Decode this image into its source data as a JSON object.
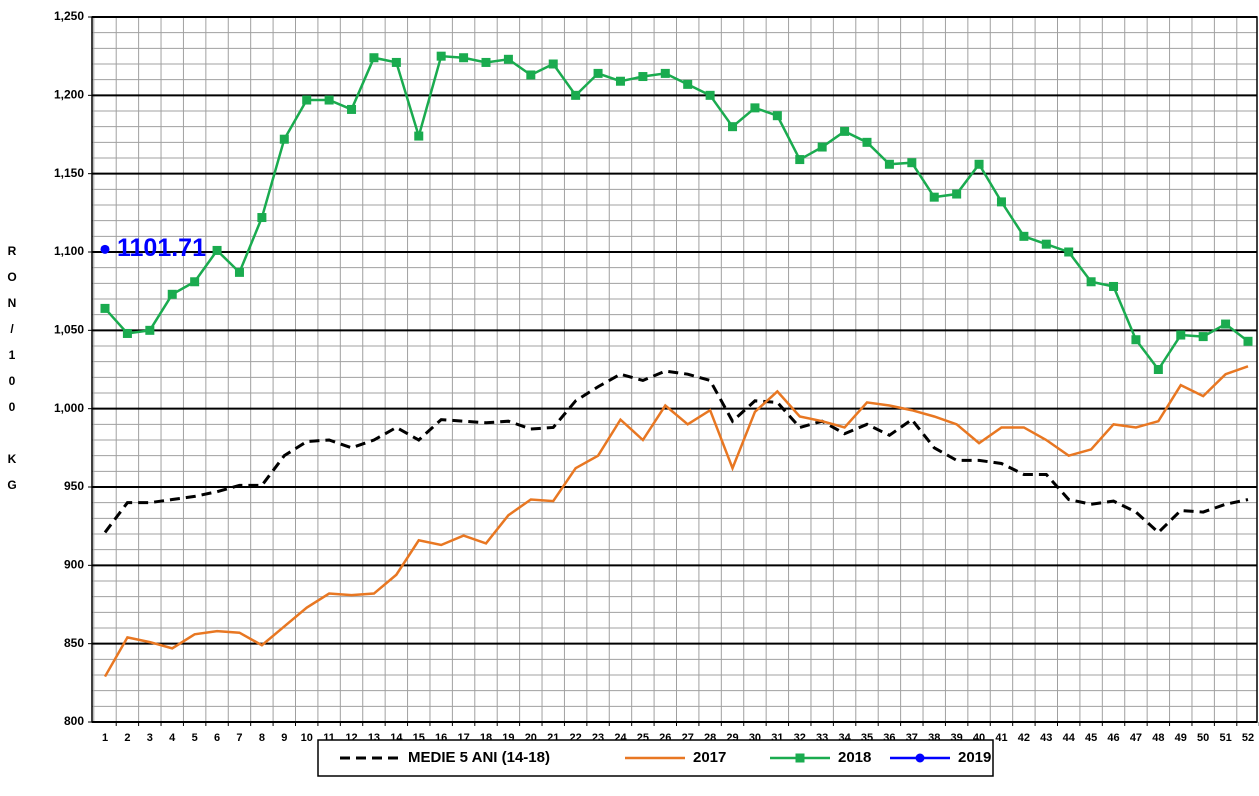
{
  "chart_data": {
    "type": "line",
    "y_label": "RON/100 KG",
    "categories": [
      "1",
      "2",
      "3",
      "4",
      "5",
      "6",
      "7",
      "8",
      "9",
      "10",
      "11",
      "12",
      "13",
      "14",
      "15",
      "16",
      "17",
      "18",
      "19",
      "20",
      "21",
      "22",
      "23",
      "24",
      "25",
      "26",
      "27",
      "28",
      "29",
      "30",
      "31",
      "32",
      "33",
      "34",
      "35",
      "36",
      "37",
      "38",
      "39",
      "40",
      "41",
      "42",
      "43",
      "44",
      "45",
      "46",
      "47",
      "48",
      "49",
      "50",
      "51",
      "52"
    ],
    "ylim": [
      800,
      1250
    ],
    "yticks": [
      800,
      850,
      900,
      950,
      {
        "value": 1000,
        "label": "1,000"
      },
      {
        "value": 1050,
        "label": "1,050"
      },
      {
        "value": 1100,
        "label": "1,100"
      },
      {
        "value": 1150,
        "label": "1,150"
      },
      {
        "value": 1200,
        "label": "1,200"
      },
      {
        "value": 1250,
        "label": "1,250"
      }
    ],
    "grid": true,
    "legend": "bottom",
    "series": [
      {
        "name": "MEDIE 5 ANI (14-18)",
        "color": "#000000",
        "dash": true,
        "marker": null,
        "values": [
          921,
          940,
          940,
          942,
          944,
          947,
          951,
          951,
          970,
          979,
          980,
          975,
          980,
          988,
          980,
          993,
          992,
          991,
          992,
          987,
          988,
          1005,
          1014,
          1022,
          1018,
          1024,
          1022,
          1018,
          992,
          1005,
          1004,
          988,
          992,
          984,
          990,
          983,
          993,
          975,
          967,
          967,
          965,
          958,
          958,
          942,
          939,
          941,
          934,
          921,
          935,
          934,
          939,
          942
        ]
      },
      {
        "name": "2017",
        "color": "#e87722",
        "dash": false,
        "marker": null,
        "values": [
          829,
          854,
          851,
          847,
          856,
          858,
          857,
          849,
          861,
          873,
          882,
          881,
          882,
          894,
          916,
          913,
          919,
          914,
          932,
          942,
          941,
          962,
          970,
          993,
          980,
          1002,
          990,
          999,
          962,
          998,
          1011,
          995,
          992,
          988,
          1004,
          1002,
          999,
          995,
          990,
          978,
          988,
          988,
          980,
          970,
          974,
          990,
          988,
          992,
          1015,
          1008,
          1022,
          1027
        ]
      },
      {
        "name": "2018",
        "color": "#1aab4f",
        "dash": false,
        "marker": "square",
        "values": [
          1064,
          1048,
          1050,
          1073,
          1081,
          1101,
          1087,
          1122,
          1172,
          1197,
          1197,
          1191,
          1224,
          1221,
          1174,
          1225,
          1224,
          1221,
          1223,
          1213,
          1220,
          1200,
          1214,
          1209,
          1212,
          1214,
          1207,
          1200,
          1180,
          1192,
          1187,
          1159,
          1167,
          1177,
          1170,
          1156,
          1157,
          1135,
          1137,
          1156,
          1132,
          1110,
          1105,
          1100,
          1081,
          1078,
          1044,
          1025,
          1047,
          1046,
          1054,
          1043
        ]
      },
      {
        "name": "2019",
        "color": "#0000ff",
        "dash": false,
        "marker": "circle",
        "values": [
          1101.71,
          null,
          null,
          null,
          null,
          null,
          null,
          null,
          null,
          null,
          null,
          null,
          null,
          null,
          null,
          null,
          null,
          null,
          null,
          null,
          null,
          null,
          null,
          null,
          null,
          null,
          null,
          null,
          null,
          null,
          null,
          null,
          null,
          null,
          null,
          null,
          null,
          null,
          null,
          null,
          null,
          null,
          null,
          null,
          null,
          null,
          null,
          null,
          null,
          null,
          null,
          null
        ],
        "value_labels": [
          "1101.71",
          null,
          null,
          null,
          null,
          null,
          null,
          null,
          null,
          null,
          null,
          null,
          null,
          null,
          null,
          null,
          null,
          null,
          null,
          null,
          null,
          null,
          null,
          null,
          null,
          null,
          null,
          null,
          null,
          null,
          null,
          null,
          null,
          null,
          null,
          null,
          null,
          null,
          null,
          null,
          null,
          null,
          null,
          null,
          null,
          null,
          null,
          null,
          null,
          null,
          null,
          null
        ]
      }
    ]
  }
}
